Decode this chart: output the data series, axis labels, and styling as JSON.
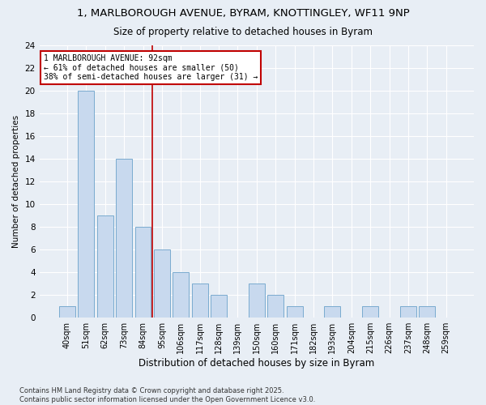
{
  "title": "1, MARLBOROUGH AVENUE, BYRAM, KNOTTINGLEY, WF11 9NP",
  "subtitle": "Size of property relative to detached houses in Byram",
  "xlabel": "Distribution of detached houses by size in Byram",
  "ylabel": "Number of detached properties",
  "categories": [
    "40sqm",
    "51sqm",
    "62sqm",
    "73sqm",
    "84sqm",
    "95sqm",
    "106sqm",
    "117sqm",
    "128sqm",
    "139sqm",
    "150sqm",
    "160sqm",
    "171sqm",
    "182sqm",
    "193sqm",
    "204sqm",
    "215sqm",
    "226sqm",
    "237sqm",
    "248sqm",
    "259sqm"
  ],
  "values": [
    1,
    20,
    9,
    14,
    8,
    6,
    4,
    3,
    2,
    0,
    3,
    2,
    1,
    0,
    1,
    0,
    1,
    0,
    1,
    1,
    0
  ],
  "bar_color": "#c8d9ee",
  "bar_edge_color": "#7aabcf",
  "highlight_color": "#c00000",
  "annotation_title": "1 MARLBOROUGH AVENUE: 92sqm",
  "annotation_line1": "← 61% of detached houses are smaller (50)",
  "annotation_line2": "38% of semi-detached houses are larger (31) →",
  "ylim": [
    0,
    24
  ],
  "yticks": [
    0,
    2,
    4,
    6,
    8,
    10,
    12,
    14,
    16,
    18,
    20,
    22,
    24
  ],
  "footnote1": "Contains HM Land Registry data © Crown copyright and database right 2025.",
  "footnote2": "Contains public sector information licensed under the Open Government Licence v3.0.",
  "bg_color": "#e8eef5",
  "plot_bg_color": "#e8eef5",
  "grid_color": "#ffffff",
  "red_line_index": 4.5
}
